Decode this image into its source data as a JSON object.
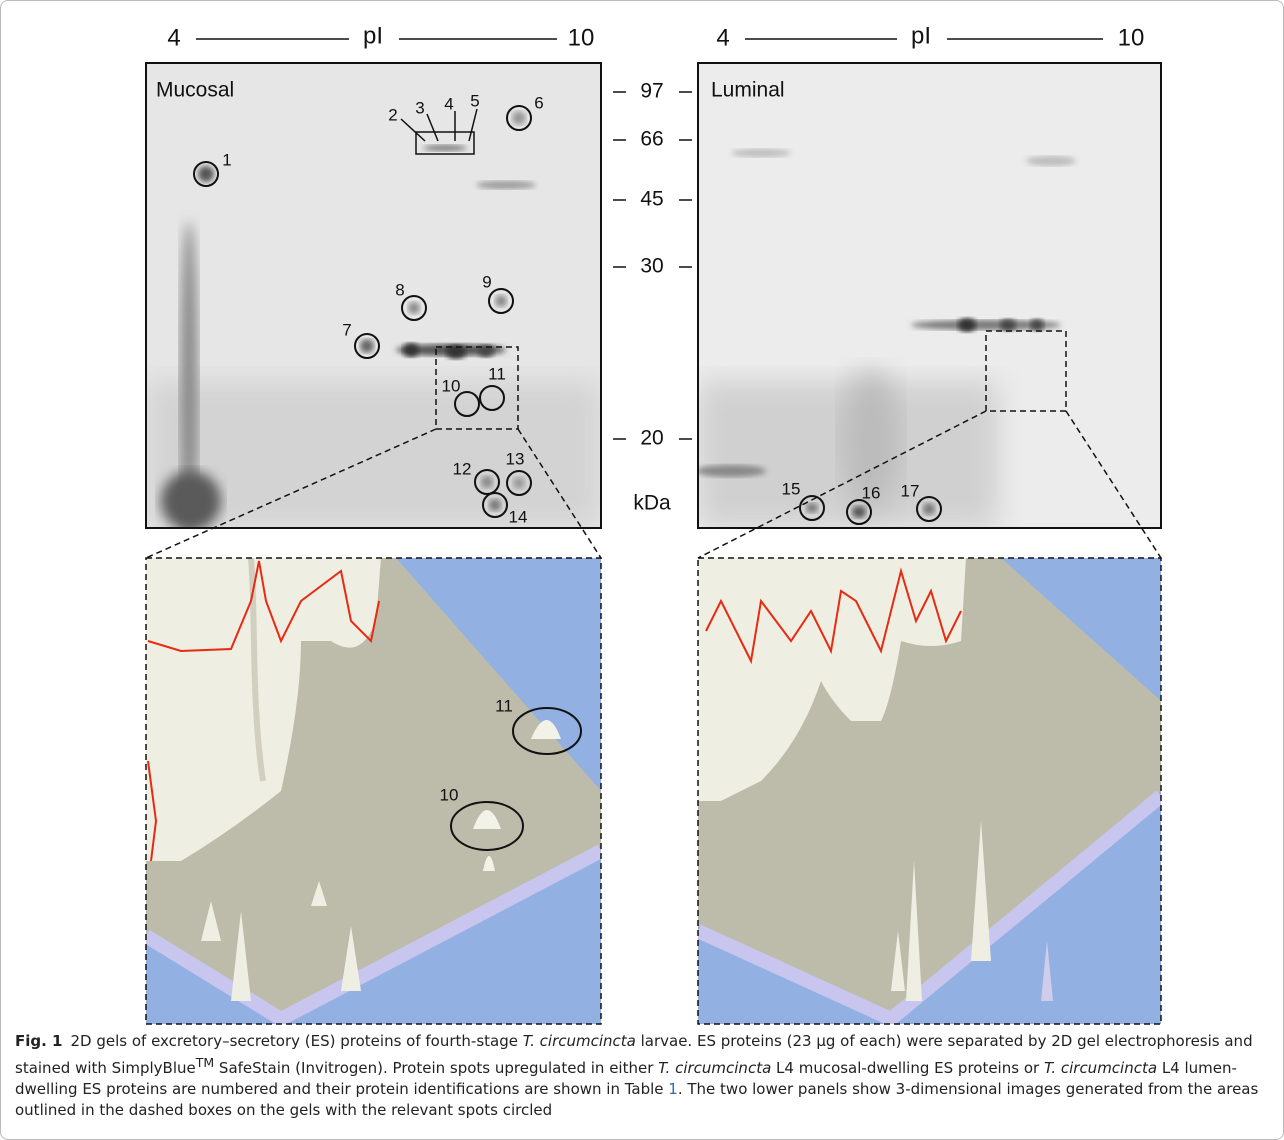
{
  "figure": {
    "gels": [
      {
        "name": "Mucosal",
        "axis": {
          "start": "4",
          "label": "pI",
          "end": "10"
        }
      },
      {
        "name": "Luminal",
        "axis": {
          "start": "4",
          "label": "pI",
          "end": "10"
        }
      }
    ],
    "mw_markers": [
      "97",
      "66",
      "45",
      "30",
      "20"
    ],
    "mw_unit": "kDa",
    "spots": [
      "1",
      "2",
      "3",
      "4",
      "5",
      "6",
      "7",
      "8",
      "9",
      "10",
      "11",
      "12",
      "13",
      "14",
      "15",
      "16",
      "17"
    ],
    "zoom_labels": [
      "11",
      "10"
    ]
  },
  "caption": {
    "label": "Fig. 1",
    "segments": [
      "2D gels of excretory–secretory (ES) proteins of fourth-stage ",
      "T. circumcincta",
      " larvae. ES proteins (23 µg of each) were separated by 2D gel electrophoresis and stained with SimplyBlue",
      "TM",
      " SafeStain (Invitrogen). Protein spots upregulated in either ",
      "T. circumcincta",
      " L4 mucosal-dwelling ES proteins or ",
      "T. circumcincta",
      " L4 lumen-dwelling ES proteins are numbered and their protein identifications are shown in Table ",
      "1",
      ". The two lower panels show 3-dimensional images generated from the areas outlined in the dashed boxes on the gels with the relevant spots circled"
    ]
  }
}
